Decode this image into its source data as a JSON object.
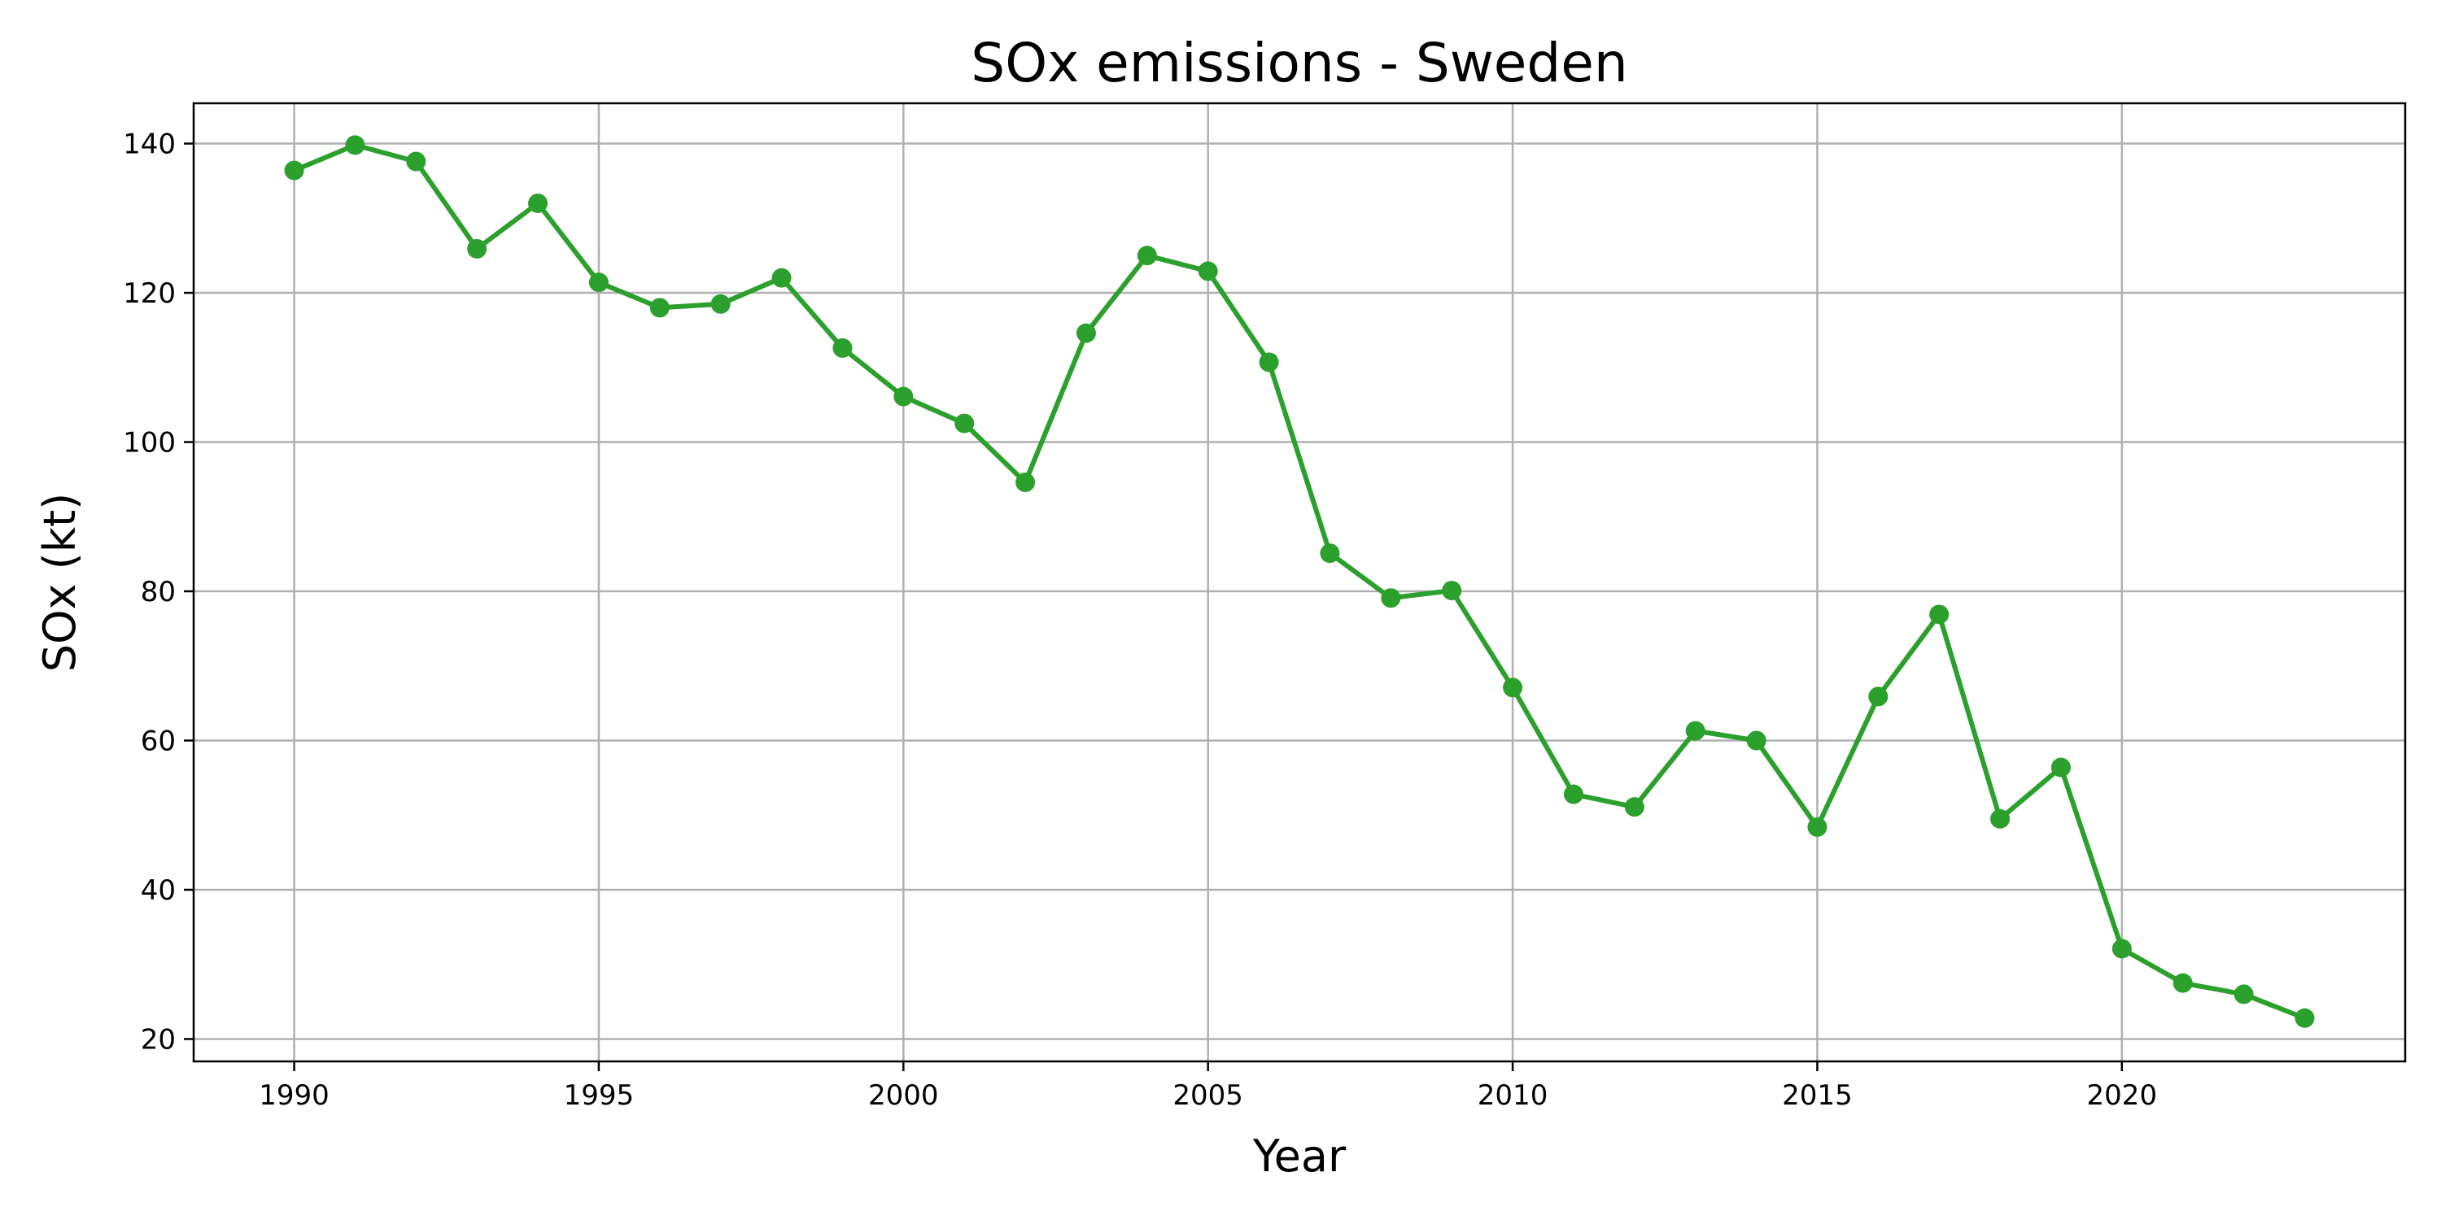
{
  "chart_data": {
    "type": "line",
    "title": "SOx emissions - Sweden",
    "xlabel": "Year",
    "ylabel": "SOx (kt)",
    "xlim": [
      1988.35,
      2024.65
    ],
    "ylim": [
      17,
      145.4
    ],
    "xticks": [
      1990,
      1995,
      2000,
      2005,
      2010,
      2015,
      2020
    ],
    "yticks": [
      20,
      40,
      60,
      80,
      100,
      120,
      140
    ],
    "grid": true,
    "colors": {
      "series": "#2ca02c"
    },
    "series": [
      {
        "x": [
          1990,
          1991,
          1992,
          1993,
          1994,
          1995,
          1996,
          1997,
          1998,
          1999,
          2000,
          2001,
          2002,
          2003,
          2004,
          2005,
          2006,
          2007,
          2008,
          2009,
          2010,
          2011,
          2012,
          2013,
          2014,
          2015,
          2016,
          2017,
          2018,
          2019,
          2020,
          2021,
          2022,
          2023
        ],
        "values": [
          136.4,
          139.8,
          137.6,
          125.9,
          132.0,
          121.4,
          118.0,
          118.5,
          122.0,
          112.6,
          106.1,
          102.5,
          94.6,
          114.6,
          125.0,
          122.9,
          110.7,
          85.1,
          79.1,
          80.1,
          67.1,
          52.8,
          51.1,
          61.3,
          60.0,
          48.4,
          65.9,
          76.9,
          49.5,
          56.4,
          32.1,
          27.5,
          26.0,
          22.8
        ]
      }
    ]
  }
}
